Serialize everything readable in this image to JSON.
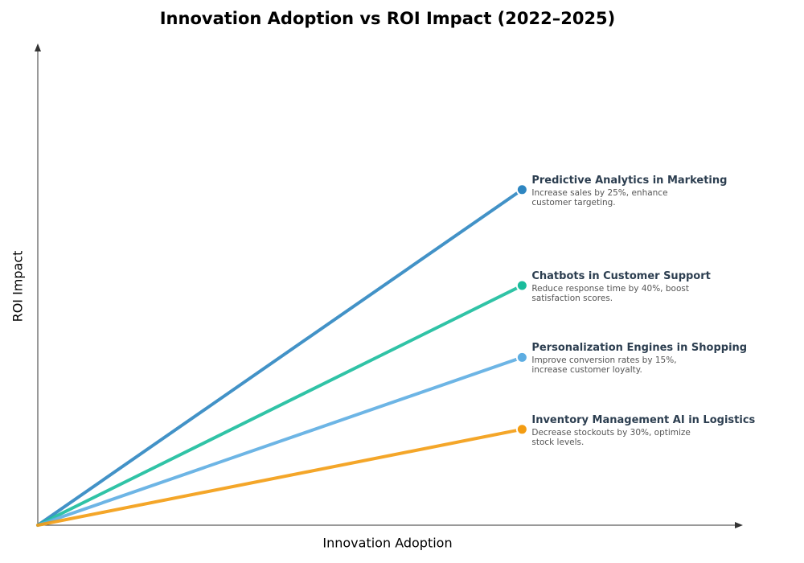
{
  "chart_data": {
    "type": "line",
    "title": "Innovation Adoption vs ROI Impact (2022–2025)",
    "x_label": "Innovation Adoption",
    "y_label": "ROI Impact",
    "xlim": [
      0,
      100
    ],
    "ylim": [
      0,
      100
    ],
    "series": [
      {
        "name": "Predictive Analytics in Marketing",
        "description": "Increase sales by 25%, enhance customer targeting.",
        "color": "#2e86c1",
        "x": [
          0,
          69
        ],
        "values": [
          0,
          70
        ]
      },
      {
        "name": "Chatbots in Customer Support",
        "description": "Reduce response time by 40%, boost satisfaction scores.",
        "color": "#1abc9c",
        "x": [
          0,
          69
        ],
        "values": [
          0,
          50
        ]
      },
      {
        "name": "Personalization Engines in Shopping",
        "description": "Improve conversion rates by 15%, increase customer loyalty.",
        "color": "#5dade2",
        "x": [
          0,
          69
        ],
        "values": [
          0,
          35
        ]
      },
      {
        "name": "Inventory Management AI in Logistics",
        "description": "Decrease stockouts by 30%, optimize stock levels.",
        "color": "#f39c12",
        "x": [
          0,
          69
        ],
        "values": [
          0,
          20
        ]
      }
    ]
  }
}
